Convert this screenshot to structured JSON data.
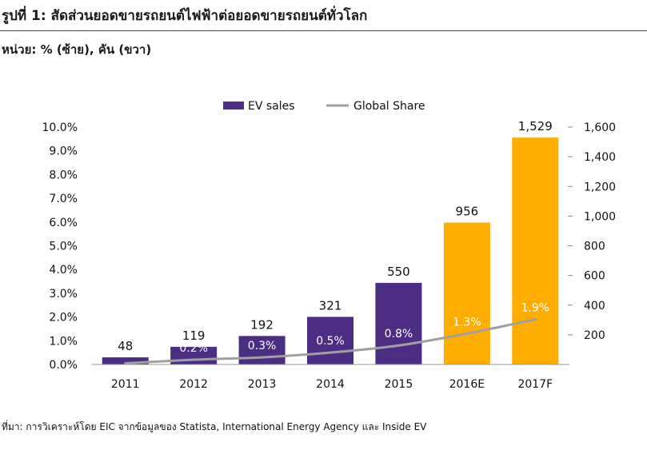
{
  "figure": {
    "title": "รูปที่ 1: สัดส่วนยอดขายรถยนต์ไฟฟ้าต่อยอดขายรถยนต์ทั่วโลก",
    "subtitle": "หน่วย: % (ซ้าย), คัน (ขวา)",
    "source": "ที่มา: การวิเคราะห์โดย EIC จากข้อมูลของ Statista, International Energy Agency และ Inside EV"
  },
  "colors": {
    "ev_bar": "#4b2d83",
    "forecast_bar": "#ffad00",
    "share_line": "#a0a0a0"
  },
  "chart_data": {
    "type": "bar",
    "categories": [
      "2011",
      "2012",
      "2013",
      "2014",
      "2015",
      "2016E",
      "2017F"
    ],
    "forecast_categories": [
      "2016E",
      "2017F"
    ],
    "series": [
      {
        "name": "EV sales",
        "type": "bar",
        "axis": "right",
        "values": [
          48,
          119,
          192,
          321,
          550,
          956,
          1529
        ],
        "labels": [
          "48",
          "119",
          "192",
          "321",
          "550",
          "956",
          "1,529"
        ]
      },
      {
        "name": "Global Share",
        "type": "line",
        "axis": "left",
        "values": [
          0.05,
          0.2,
          0.3,
          0.5,
          0.8,
          1.3,
          1.9
        ],
        "labels": [
          "",
          "0.2%",
          "0.3%",
          "0.5%",
          "0.8%",
          "1.3%",
          "1.9%"
        ]
      }
    ],
    "y_left": {
      "ylim": [
        0,
        10
      ],
      "ticks": [
        "0.0%",
        "1.0%",
        "2.0%",
        "3.0%",
        "4.0%",
        "5.0%",
        "6.0%",
        "7.0%",
        "8.0%",
        "9.0%",
        "10.0%"
      ]
    },
    "y_right": {
      "ylim": [
        0,
        1600
      ],
      "ticks": [
        "200",
        "400",
        "600",
        "800",
        "1,000",
        "1,200",
        "1,400",
        "1,600"
      ]
    },
    "legend": {
      "position": "top-center"
    },
    "grid": false
  }
}
